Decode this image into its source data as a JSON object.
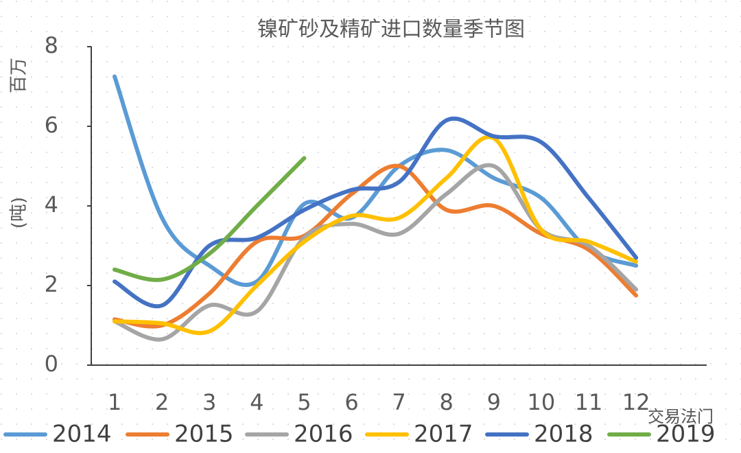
{
  "chart_data": {
    "type": "line",
    "title": "镍矿砂及精矿进口数量季节图",
    "y_label_top": "百万",
    "y_label": "(吨)",
    "watermark": "交易法门",
    "categories": [
      "1",
      "2",
      "3",
      "4",
      "5",
      "6",
      "7",
      "8",
      "9",
      "10",
      "11",
      "12"
    ],
    "series": [
      {
        "name": "2014",
        "color": "#5b9bd5",
        "values": [
          7.25,
          3.7,
          2.5,
          2.1,
          4.05,
          3.7,
          5.0,
          5.4,
          4.7,
          4.2,
          2.9,
          2.5
        ]
      },
      {
        "name": "2015",
        "color": "#ed7d31",
        "values": [
          1.15,
          1.0,
          1.8,
          3.1,
          3.25,
          4.3,
          5.0,
          3.9,
          4.0,
          3.3,
          2.9,
          1.75
        ]
      },
      {
        "name": "2016",
        "color": "#a5a5a5",
        "values": [
          1.1,
          0.65,
          1.5,
          1.35,
          3.2,
          3.55,
          3.3,
          4.3,
          5.0,
          3.4,
          3.0,
          1.9
        ]
      },
      {
        "name": "2017",
        "color": "#ffc000",
        "values": [
          1.1,
          1.05,
          0.85,
          2.0,
          3.1,
          3.75,
          3.7,
          4.7,
          5.7,
          3.4,
          3.1,
          2.6
        ]
      },
      {
        "name": "2018",
        "color": "#4472c4",
        "values": [
          2.1,
          1.5,
          3.0,
          3.2,
          3.9,
          4.4,
          4.6,
          6.15,
          5.75,
          5.6,
          4.2,
          2.7
        ]
      },
      {
        "name": "2019",
        "color": "#70ad47",
        "values": [
          2.4,
          2.15,
          2.8,
          4.0,
          5.2,
          null,
          null,
          null,
          null,
          null,
          null,
          null
        ]
      }
    ],
    "ylim": [
      0,
      8
    ],
    "yticks": [
      0,
      2,
      4,
      6,
      8
    ],
    "smooth": true
  }
}
